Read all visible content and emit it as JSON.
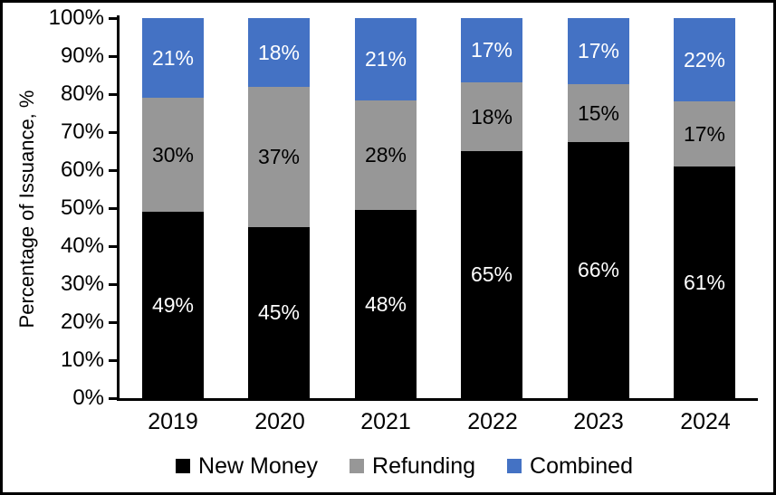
{
  "figure": {
    "background_color": "#ffffff",
    "frame_border_color": "#000000"
  },
  "chart_data": {
    "type": "bar",
    "stacked": true,
    "title": "",
    "xlabel": "",
    "ylabel": "Percentage of Issuance, %",
    "categories": [
      "2019",
      "2020",
      "2021",
      "2022",
      "2023",
      "2024"
    ],
    "series": [
      {
        "name": "New Money",
        "color": "#000000",
        "label_color": "#ffffff",
        "values": [
          49,
          45,
          48,
          65,
          66,
          61
        ]
      },
      {
        "name": "Refunding",
        "color": "#979797",
        "label_color": "#000000",
        "values": [
          30,
          37,
          28,
          18,
          15,
          17
        ]
      },
      {
        "name": "Combined",
        "color": "#4472C4",
        "label_color": "#ffffff",
        "values": [
          21,
          18,
          21,
          17,
          17,
          22
        ]
      }
    ],
    "value_suffix": "%",
    "data_labels": true,
    "ylim": [
      0,
      100
    ],
    "ytick_step": 10,
    "ytick_labels": [
      "0%",
      "10%",
      "20%",
      "30%",
      "40%",
      "50%",
      "60%",
      "70%",
      "80%",
      "90%",
      "100%"
    ],
    "grid": false,
    "legend_position": "bottom",
    "axis_color": "#000000"
  }
}
